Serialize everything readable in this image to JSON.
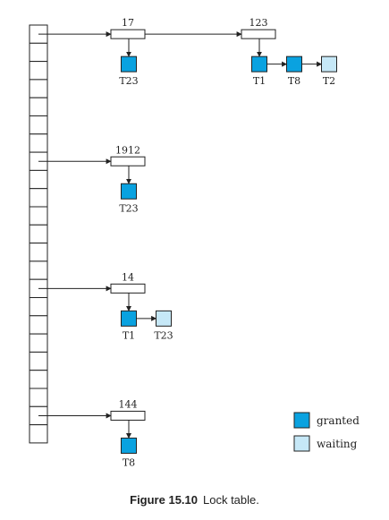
{
  "colors": {
    "granted": "#0aa2e0",
    "waiting": "#c6e8f7",
    "line": "#222222"
  },
  "hash_table": {
    "slots": 23
  },
  "rows": [
    {
      "entries": [
        {
          "item": "17",
          "transactions": [
            {
              "name": "T23",
              "status": "granted"
            }
          ]
        },
        {
          "item": "123",
          "transactions": [
            {
              "name": "T1",
              "status": "granted"
            },
            {
              "name": "T8",
              "status": "granted"
            },
            {
              "name": "T2",
              "status": "waiting"
            }
          ]
        }
      ]
    },
    {
      "entries": [
        {
          "item": "1912",
          "transactions": [
            {
              "name": "T23",
              "status": "granted"
            }
          ]
        }
      ]
    },
    {
      "entries": [
        {
          "item": "14",
          "transactions": [
            {
              "name": "T1",
              "status": "granted"
            },
            {
              "name": "T23",
              "status": "waiting"
            }
          ]
        }
      ]
    },
    {
      "entries": [
        {
          "item": "144",
          "transactions": [
            {
              "name": "T8",
              "status": "granted"
            }
          ]
        }
      ]
    }
  ],
  "legend": {
    "granted_label": "granted",
    "waiting_label": "waiting"
  },
  "caption": {
    "number": "Figure 15.10",
    "text": "Lock table."
  }
}
